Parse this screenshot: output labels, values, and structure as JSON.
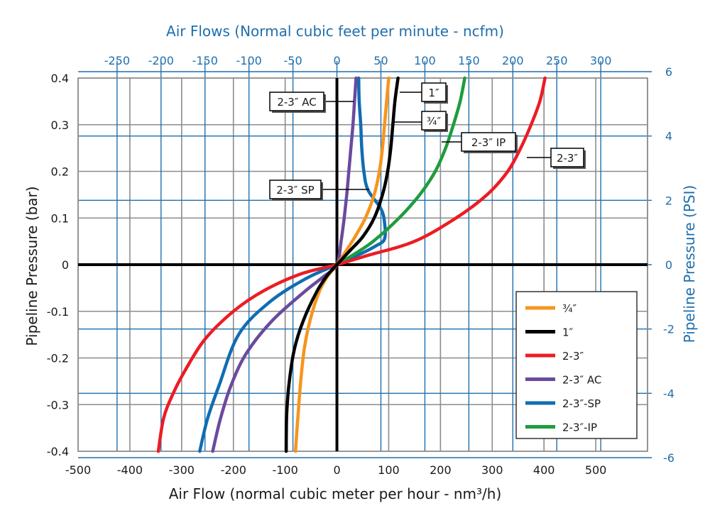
{
  "chart_data": {
    "type": "line",
    "title": "Air Flows (Normal cubic feet per minute - ncfm)",
    "xlabel": "Air Flow (normal cubic meter per hour - nm³/h)",
    "ylabel": "Pipeline Pressure (bar)",
    "y2label": "Pipeline Pressure (PSI)",
    "xlim": [
      -500,
      600
    ],
    "ylim": [
      -0.4,
      0.4
    ],
    "x_ticks": [
      "-500",
      "-400",
      "-300",
      "-200",
      "-100",
      "0",
      "100",
      "200",
      "300",
      "400",
      "500"
    ],
    "y_ticks": [
      "0.4",
      "0.3",
      "0.2",
      "0.1",
      "0",
      "-0.1",
      "-0.2",
      "-0.3",
      "-0.4"
    ],
    "top_ticks": [
      "-250",
      "-200",
      "-150",
      "-100",
      "-50",
      "0",
      "50",
      "100",
      "150",
      "200",
      "250",
      "300"
    ],
    "top_tick_values_ncfm": [
      -250,
      -200,
      -150,
      -100,
      -50,
      0,
      50,
      100,
      150,
      200,
      250,
      300
    ],
    "right_ticks": [
      "6",
      "4",
      "2",
      "0",
      "-2",
      "-4",
      "-6"
    ],
    "right_tick_values_psi": [
      6,
      4,
      2,
      0,
      -2,
      -4,
      -6
    ],
    "grid": true,
    "legend_position": "bottom-right",
    "series": [
      {
        "name": "¾″",
        "color": "#f7941d",
        "points": [
          [
            -80,
            -0.4
          ],
          [
            -75,
            -0.32
          ],
          [
            -70,
            -0.25
          ],
          [
            -63,
            -0.18
          ],
          [
            -52,
            -0.12
          ],
          [
            -35,
            -0.06
          ],
          [
            -18,
            -0.025
          ],
          [
            0,
            0
          ],
          [
            15,
            0.025
          ],
          [
            35,
            0.06
          ],
          [
            55,
            0.1
          ],
          [
            72,
            0.15
          ],
          [
            82,
            0.2
          ],
          [
            88,
            0.25
          ],
          [
            92,
            0.3
          ],
          [
            96,
            0.35
          ],
          [
            100,
            0.4
          ]
        ]
      },
      {
        "name": "1″",
        "color": "#000000",
        "points": [
          [
            -98,
            -0.4
          ],
          [
            -97,
            -0.32
          ],
          [
            -92,
            -0.25
          ],
          [
            -82,
            -0.18
          ],
          [
            -65,
            -0.12
          ],
          [
            -40,
            -0.06
          ],
          [
            -20,
            -0.025
          ],
          [
            0,
            0
          ],
          [
            25,
            0.03
          ],
          [
            50,
            0.06
          ],
          [
            72,
            0.1
          ],
          [
            88,
            0.15
          ],
          [
            98,
            0.2
          ],
          [
            104,
            0.25
          ],
          [
            108,
            0.3
          ],
          [
            112,
            0.35
          ],
          [
            118,
            0.4
          ]
        ]
      },
      {
        "name": "2-3″",
        "color": "#ec1c24",
        "points": [
          [
            -345,
            -0.4
          ],
          [
            -335,
            -0.33
          ],
          [
            -318,
            -0.28
          ],
          [
            -295,
            -0.23
          ],
          [
            -255,
            -0.16
          ],
          [
            -200,
            -0.1
          ],
          [
            -140,
            -0.055
          ],
          [
            -70,
            -0.02
          ],
          [
            0,
            0
          ],
          [
            60,
            0.02
          ],
          [
            150,
            0.05
          ],
          [
            230,
            0.1
          ],
          [
            290,
            0.15
          ],
          [
            330,
            0.2
          ],
          [
            355,
            0.25
          ],
          [
            375,
            0.3
          ],
          [
            392,
            0.35
          ],
          [
            402,
            0.4
          ]
        ]
      },
      {
        "name": "2-3″ AC",
        "color": "#6a4a9e",
        "points": [
          [
            -240,
            -0.4
          ],
          [
            -225,
            -0.33
          ],
          [
            -205,
            -0.26
          ],
          [
            -175,
            -0.19
          ],
          [
            -125,
            -0.12
          ],
          [
            -65,
            -0.06
          ],
          [
            -25,
            -0.025
          ],
          [
            0,
            0
          ],
          [
            8,
            0.05
          ],
          [
            14,
            0.1
          ],
          [
            19,
            0.15
          ],
          [
            23,
            0.2
          ],
          [
            27,
            0.25
          ],
          [
            31,
            0.3
          ],
          [
            34,
            0.35
          ],
          [
            37,
            0.4
          ]
        ]
      },
      {
        "name": "2-3″-SP",
        "color": "#0f6db3",
        "points": [
          [
            -265,
            -0.4
          ],
          [
            -250,
            -0.33
          ],
          [
            -228,
            -0.26
          ],
          [
            -190,
            -0.15
          ],
          [
            -130,
            -0.08
          ],
          [
            -60,
            -0.03
          ],
          [
            0,
            0
          ],
          [
            40,
            0.02
          ],
          [
            75,
            0.04
          ],
          [
            92,
            0.055
          ],
          [
            92,
            0.09
          ],
          [
            85,
            0.12
          ],
          [
            60,
            0.16
          ],
          [
            52,
            0.2
          ],
          [
            48,
            0.25
          ],
          [
            46,
            0.3
          ],
          [
            43,
            0.35
          ],
          [
            42,
            0.4
          ]
        ]
      },
      {
        "name": "2-3″-IP",
        "color": "#1e9c3c",
        "points": [
          [
            0,
            0
          ],
          [
            30,
            0.02
          ],
          [
            70,
            0.05
          ],
          [
            120,
            0.1
          ],
          [
            160,
            0.15
          ],
          [
            190,
            0.2
          ],
          [
            210,
            0.25
          ],
          [
            225,
            0.3
          ],
          [
            238,
            0.35
          ],
          [
            247,
            0.4
          ]
        ]
      }
    ],
    "annotations": [
      {
        "text": "2-3″ AC",
        "series": "2-3″ AC"
      },
      {
        "text": "1″",
        "series": "1″"
      },
      {
        "text": "¾″",
        "series": "¾″"
      },
      {
        "text": "2-3″ IP",
        "series": "2-3″-IP"
      },
      {
        "text": "2-3″",
        "series": "2-3″"
      },
      {
        "text": "2-3″ SP",
        "series": "2-3″-SP"
      }
    ]
  }
}
